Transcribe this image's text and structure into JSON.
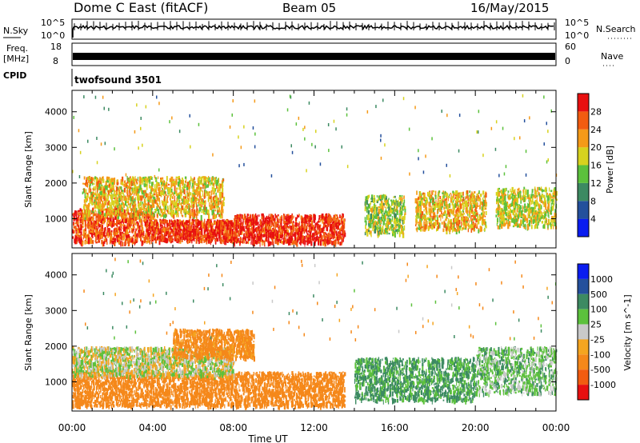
{
  "header": {
    "station": "Dome C East (fitACF)",
    "beam": "Beam 05",
    "date": "16/May/2015"
  },
  "summary": {
    "nsky_label": "N.Sky",
    "nsky_ticks": [
      "10^5",
      "10^0"
    ],
    "nsearch_label": "N.Search",
    "freq_label": "Freq.",
    "freq_unit": "[MHz]",
    "freq_ticks": [
      "18",
      "8"
    ],
    "nave_label": "Nave",
    "nave_ticks": [
      "60",
      "0"
    ],
    "cpid_label": "CPID",
    "cpid_value": "twofsound 3501"
  },
  "colors": {
    "power_scale": [
      "#0a1cf0",
      "#24509c",
      "#3c8a62",
      "#5cc13c",
      "#d7d21e",
      "#f59a18",
      "#f25c10",
      "#e81010"
    ],
    "velocity_scale": [
      "#e81010",
      "#f25c10",
      "#f5881a",
      "#f5a520",
      "#c9c9c9",
      "#5cc13c",
      "#3c8a62",
      "#24509c",
      "#0a1cf0"
    ],
    "ground_scatter": "#8c8c8c"
  },
  "chart_data": [
    {
      "type": "heatmap",
      "title": "",
      "xlabel": "",
      "ylabel": "Slant Range [km]",
      "xlim": [
        0,
        24
      ],
      "ylim": [
        180,
        4600
      ],
      "yticks": [
        1000,
        2000,
        3000,
        4000
      ],
      "legend": {
        "label": "Power [dB]",
        "ticks": [
          "4",
          "8",
          "12",
          "16",
          "20",
          "24",
          "28"
        ],
        "range": [
          0,
          32
        ]
      },
      "echo_regions": [
        {
          "t_start": 0.0,
          "t_end": 4.0,
          "range_low": 350,
          "range_high": 1300,
          "value": 27
        },
        {
          "t_start": 4.0,
          "t_end": 8.0,
          "range_low": 400,
          "range_high": 1000,
          "value": 29
        },
        {
          "t_start": 8.0,
          "t_end": 13.5,
          "range_low": 350,
          "range_high": 1150,
          "value": 29
        },
        {
          "t_start": 0.5,
          "t_end": 7.5,
          "range_low": 1100,
          "range_high": 2200,
          "value": 20
        },
        {
          "t_start": 14.5,
          "t_end": 16.5,
          "range_low": 600,
          "range_high": 1700,
          "value": 16
        },
        {
          "t_start": 17.0,
          "t_end": 20.5,
          "range_low": 700,
          "range_high": 1800,
          "value": 20
        },
        {
          "t_start": 21.0,
          "t_end": 24.0,
          "range_low": 800,
          "range_high": 1900,
          "value": 18
        }
      ]
    },
    {
      "type": "heatmap",
      "title": "",
      "xlabel": "Time UT",
      "ylabel": "Slant Range [km]",
      "xlim": [
        0,
        24
      ],
      "ylim": [
        180,
        4600
      ],
      "xticks": [
        "00:00",
        "04:00",
        "08:00",
        "12:00",
        "16:00",
        "20:00",
        "00:00"
      ],
      "yticks": [
        1000,
        2000,
        3000,
        4000
      ],
      "legend": {
        "label": "Velocity [m s^-1]",
        "ticks": [
          "1000",
          "500",
          "100",
          "25",
          "-25",
          "-100",
          "-500",
          "-1000"
        ]
      },
      "echo_regions": [
        {
          "t_start": 0.0,
          "t_end": 13.5,
          "range_low": 350,
          "range_high": 1300,
          "value": -200
        },
        {
          "t_start": 0.0,
          "t_end": 8.0,
          "range_low": 1200,
          "range_high": 2000,
          "value": 0
        },
        {
          "t_start": 5.0,
          "t_end": 9.0,
          "range_low": 1700,
          "range_high": 2500,
          "value": -150
        },
        {
          "t_start": 14.0,
          "t_end": 20.0,
          "range_low": 500,
          "range_high": 1700,
          "value": 120
        },
        {
          "t_start": 20.0,
          "t_end": 24.0,
          "range_low": 700,
          "range_high": 2000,
          "value": 60
        }
      ]
    }
  ]
}
